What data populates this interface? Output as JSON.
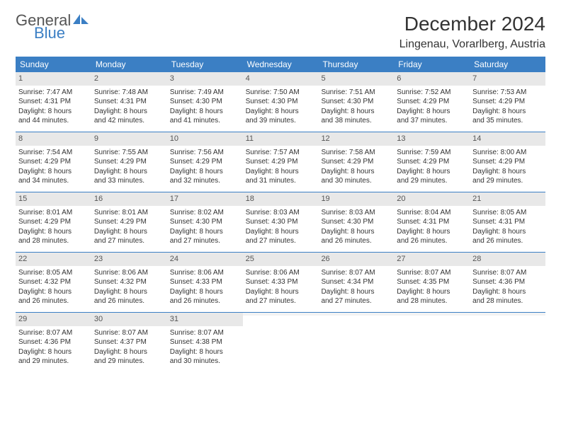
{
  "logo": {
    "line1": "General",
    "line2": "Blue",
    "shape_color": "#3b7fc4"
  },
  "title": "December 2024",
  "location": "Lingenau, Vorarlberg, Austria",
  "colors": {
    "header_bg": "#3b7fc4",
    "daynum_bg": "#e8e8e8",
    "border": "#3b7fc4",
    "text": "#333333"
  },
  "weekdays": [
    "Sunday",
    "Monday",
    "Tuesday",
    "Wednesday",
    "Thursday",
    "Friday",
    "Saturday"
  ],
  "weeks": [
    [
      {
        "n": "1",
        "sr": "Sunrise: 7:47 AM",
        "ss": "Sunset: 4:31 PM",
        "d1": "Daylight: 8 hours",
        "d2": "and 44 minutes."
      },
      {
        "n": "2",
        "sr": "Sunrise: 7:48 AM",
        "ss": "Sunset: 4:31 PM",
        "d1": "Daylight: 8 hours",
        "d2": "and 42 minutes."
      },
      {
        "n": "3",
        "sr": "Sunrise: 7:49 AM",
        "ss": "Sunset: 4:30 PM",
        "d1": "Daylight: 8 hours",
        "d2": "and 41 minutes."
      },
      {
        "n": "4",
        "sr": "Sunrise: 7:50 AM",
        "ss": "Sunset: 4:30 PM",
        "d1": "Daylight: 8 hours",
        "d2": "and 39 minutes."
      },
      {
        "n": "5",
        "sr": "Sunrise: 7:51 AM",
        "ss": "Sunset: 4:30 PM",
        "d1": "Daylight: 8 hours",
        "d2": "and 38 minutes."
      },
      {
        "n": "6",
        "sr": "Sunrise: 7:52 AM",
        "ss": "Sunset: 4:29 PM",
        "d1": "Daylight: 8 hours",
        "d2": "and 37 minutes."
      },
      {
        "n": "7",
        "sr": "Sunrise: 7:53 AM",
        "ss": "Sunset: 4:29 PM",
        "d1": "Daylight: 8 hours",
        "d2": "and 35 minutes."
      }
    ],
    [
      {
        "n": "8",
        "sr": "Sunrise: 7:54 AM",
        "ss": "Sunset: 4:29 PM",
        "d1": "Daylight: 8 hours",
        "d2": "and 34 minutes."
      },
      {
        "n": "9",
        "sr": "Sunrise: 7:55 AM",
        "ss": "Sunset: 4:29 PM",
        "d1": "Daylight: 8 hours",
        "d2": "and 33 minutes."
      },
      {
        "n": "10",
        "sr": "Sunrise: 7:56 AM",
        "ss": "Sunset: 4:29 PM",
        "d1": "Daylight: 8 hours",
        "d2": "and 32 minutes."
      },
      {
        "n": "11",
        "sr": "Sunrise: 7:57 AM",
        "ss": "Sunset: 4:29 PM",
        "d1": "Daylight: 8 hours",
        "d2": "and 31 minutes."
      },
      {
        "n": "12",
        "sr": "Sunrise: 7:58 AM",
        "ss": "Sunset: 4:29 PM",
        "d1": "Daylight: 8 hours",
        "d2": "and 30 minutes."
      },
      {
        "n": "13",
        "sr": "Sunrise: 7:59 AM",
        "ss": "Sunset: 4:29 PM",
        "d1": "Daylight: 8 hours",
        "d2": "and 29 minutes."
      },
      {
        "n": "14",
        "sr": "Sunrise: 8:00 AM",
        "ss": "Sunset: 4:29 PM",
        "d1": "Daylight: 8 hours",
        "d2": "and 29 minutes."
      }
    ],
    [
      {
        "n": "15",
        "sr": "Sunrise: 8:01 AM",
        "ss": "Sunset: 4:29 PM",
        "d1": "Daylight: 8 hours",
        "d2": "and 28 minutes."
      },
      {
        "n": "16",
        "sr": "Sunrise: 8:01 AM",
        "ss": "Sunset: 4:29 PM",
        "d1": "Daylight: 8 hours",
        "d2": "and 27 minutes."
      },
      {
        "n": "17",
        "sr": "Sunrise: 8:02 AM",
        "ss": "Sunset: 4:30 PM",
        "d1": "Daylight: 8 hours",
        "d2": "and 27 minutes."
      },
      {
        "n": "18",
        "sr": "Sunrise: 8:03 AM",
        "ss": "Sunset: 4:30 PM",
        "d1": "Daylight: 8 hours",
        "d2": "and 27 minutes."
      },
      {
        "n": "19",
        "sr": "Sunrise: 8:03 AM",
        "ss": "Sunset: 4:30 PM",
        "d1": "Daylight: 8 hours",
        "d2": "and 26 minutes."
      },
      {
        "n": "20",
        "sr": "Sunrise: 8:04 AM",
        "ss": "Sunset: 4:31 PM",
        "d1": "Daylight: 8 hours",
        "d2": "and 26 minutes."
      },
      {
        "n": "21",
        "sr": "Sunrise: 8:05 AM",
        "ss": "Sunset: 4:31 PM",
        "d1": "Daylight: 8 hours",
        "d2": "and 26 minutes."
      }
    ],
    [
      {
        "n": "22",
        "sr": "Sunrise: 8:05 AM",
        "ss": "Sunset: 4:32 PM",
        "d1": "Daylight: 8 hours",
        "d2": "and 26 minutes."
      },
      {
        "n": "23",
        "sr": "Sunrise: 8:06 AM",
        "ss": "Sunset: 4:32 PM",
        "d1": "Daylight: 8 hours",
        "d2": "and 26 minutes."
      },
      {
        "n": "24",
        "sr": "Sunrise: 8:06 AM",
        "ss": "Sunset: 4:33 PM",
        "d1": "Daylight: 8 hours",
        "d2": "and 26 minutes."
      },
      {
        "n": "25",
        "sr": "Sunrise: 8:06 AM",
        "ss": "Sunset: 4:33 PM",
        "d1": "Daylight: 8 hours",
        "d2": "and 27 minutes."
      },
      {
        "n": "26",
        "sr": "Sunrise: 8:07 AM",
        "ss": "Sunset: 4:34 PM",
        "d1": "Daylight: 8 hours",
        "d2": "and 27 minutes."
      },
      {
        "n": "27",
        "sr": "Sunrise: 8:07 AM",
        "ss": "Sunset: 4:35 PM",
        "d1": "Daylight: 8 hours",
        "d2": "and 28 minutes."
      },
      {
        "n": "28",
        "sr": "Sunrise: 8:07 AM",
        "ss": "Sunset: 4:36 PM",
        "d1": "Daylight: 8 hours",
        "d2": "and 28 minutes."
      }
    ],
    [
      {
        "n": "29",
        "sr": "Sunrise: 8:07 AM",
        "ss": "Sunset: 4:36 PM",
        "d1": "Daylight: 8 hours",
        "d2": "and 29 minutes."
      },
      {
        "n": "30",
        "sr": "Sunrise: 8:07 AM",
        "ss": "Sunset: 4:37 PM",
        "d1": "Daylight: 8 hours",
        "d2": "and 29 minutes."
      },
      {
        "n": "31",
        "sr": "Sunrise: 8:07 AM",
        "ss": "Sunset: 4:38 PM",
        "d1": "Daylight: 8 hours",
        "d2": "and 30 minutes."
      },
      {
        "empty": true
      },
      {
        "empty": true
      },
      {
        "empty": true
      },
      {
        "empty": true
      }
    ]
  ]
}
